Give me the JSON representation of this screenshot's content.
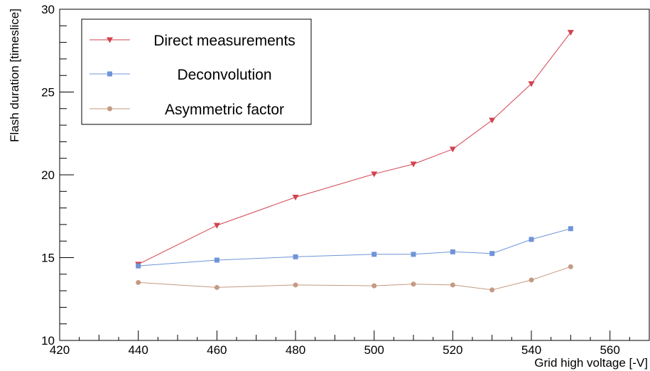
{
  "chart_data": {
    "type": "line",
    "title": "",
    "xlabel": "Grid high voltage [-V]",
    "ylabel": "Flash duration [timeslice]",
    "xlim": [
      420,
      570
    ],
    "ylim": [
      10,
      30
    ],
    "x_major_ticks": [
      420,
      440,
      460,
      480,
      500,
      520,
      540,
      560
    ],
    "x_tick_labels": [
      "420",
      "440",
      "460",
      "480",
      "500",
      "520",
      "540",
      "560"
    ],
    "y_major_ticks": [
      10,
      15,
      20,
      25,
      30
    ],
    "y_tick_labels": [
      "10",
      "15",
      "20",
      "25",
      "30"
    ],
    "grid": false,
    "legend_position": "top-left",
    "x": [
      440,
      460,
      480,
      500,
      510,
      520,
      530,
      540,
      550
    ],
    "series": [
      {
        "name": "Direct measurements",
        "color": "#d2424e",
        "marker": "triangle-down",
        "values": [
          14.6,
          16.95,
          18.65,
          20.05,
          20.65,
          21.55,
          23.3,
          25.5,
          28.6
        ]
      },
      {
        "name": "Deconvolution",
        "color": "#6f94d8",
        "marker": "square",
        "values": [
          14.5,
          14.85,
          15.05,
          15.2,
          15.2,
          15.35,
          15.25,
          16.1,
          16.75
        ]
      },
      {
        "name": "Asymmetric factor",
        "color": "#c49a82",
        "marker": "circle",
        "values": [
          13.5,
          13.2,
          13.35,
          13.3,
          13.4,
          13.35,
          13.05,
          13.65,
          14.45
        ]
      }
    ]
  }
}
